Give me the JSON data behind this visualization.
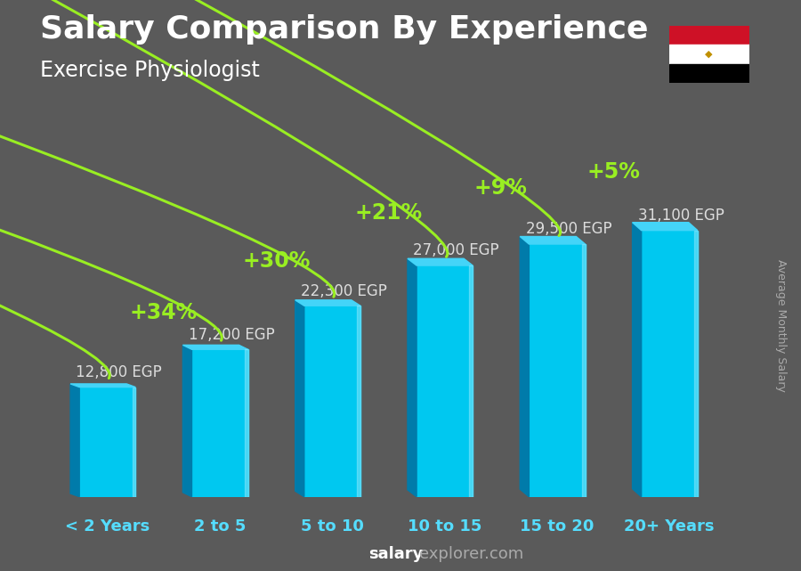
{
  "title": "Salary Comparison By Experience",
  "subtitle": "Exercise Physiologist",
  "ylabel": "Average Monthly Salary",
  "categories": [
    "< 2 Years",
    "2 to 5",
    "5 to 10",
    "10 to 15",
    "15 to 20",
    "20+ Years"
  ],
  "values": [
    12800,
    17200,
    22300,
    27000,
    29500,
    31100
  ],
  "labels": [
    "12,800 EGP",
    "17,200 EGP",
    "22,300 EGP",
    "27,000 EGP",
    "29,500 EGP",
    "31,100 EGP"
  ],
  "pct_labels": [
    "+34%",
    "+30%",
    "+21%",
    "+9%",
    "+5%"
  ],
  "bar_face_color": "#00c8f0",
  "bar_left_color": "#007baa",
  "bar_right_color": "#55e0ff",
  "bar_top_color": "#44d4f8",
  "background_color": "#5a5a5a",
  "title_color": "#ffffff",
  "subtitle_color": "#ffffff",
  "cat_color": "#55ddff",
  "pct_color": "#99ee22",
  "arrow_color": "#99ee22",
  "salary_color": "#dddddd",
  "watermark_salary_color": "#ffffff",
  "watermark_rest_color": "#aaaaaa",
  "title_fontsize": 26,
  "subtitle_fontsize": 17,
  "cat_fontsize": 13,
  "pct_fontsize": 17,
  "salary_fontsize": 12,
  "ylabel_fontsize": 9,
  "watermark_fontsize": 13,
  "ylim": [
    0,
    40000
  ],
  "bar_width": 0.5
}
